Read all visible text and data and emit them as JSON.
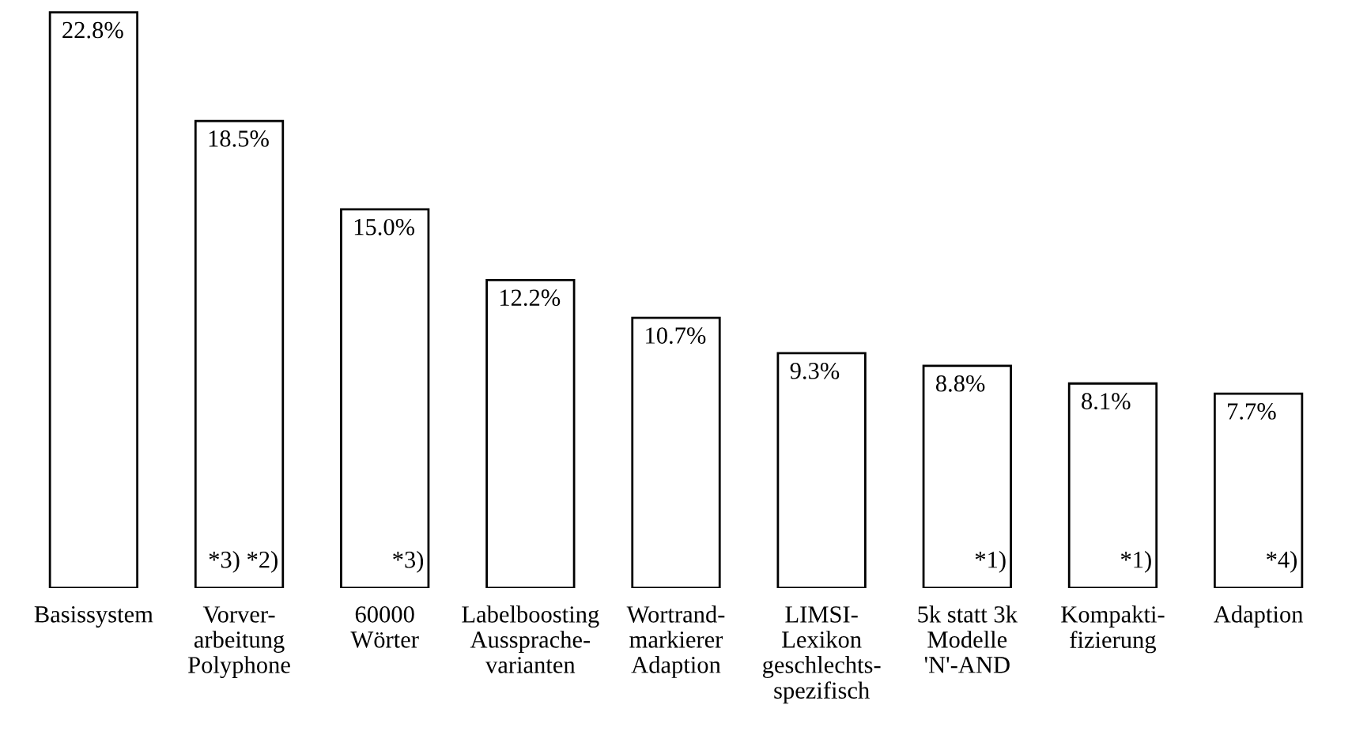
{
  "chart_data": {
    "type": "bar",
    "categories": [
      "Basissystem",
      "Vorver-\narbeitung\nPolyphone",
      "60000\nWörter",
      "Labelboosting\nAussprache-\nvarianten",
      "Wortrand-\nmarkierer\nAdaption",
      "LIMSI-\nLexikon\ngeschlechts-\nspezifisch",
      "5k statt 3k\nModelle\n'N'-AND",
      "Kompakti-\nfizierung",
      "Adaption"
    ],
    "values": [
      22.8,
      18.5,
      15.0,
      12.2,
      10.7,
      9.3,
      8.8,
      8.1,
      7.7
    ],
    "value_labels": [
      "22.8%",
      "18.5%",
      "15.0%",
      "12.2%",
      "10.7%",
      "9.3%",
      "8.8%",
      "8.1%",
      "7.7%"
    ],
    "color": "#ffffff",
    "ylim": [
      0,
      23
    ],
    "tick_labels": "x",
    "annotations": [
      "*3) *2)",
      "*3)",
      "*1)",
      "*1)",
      "*4)"
    ]
  }
}
